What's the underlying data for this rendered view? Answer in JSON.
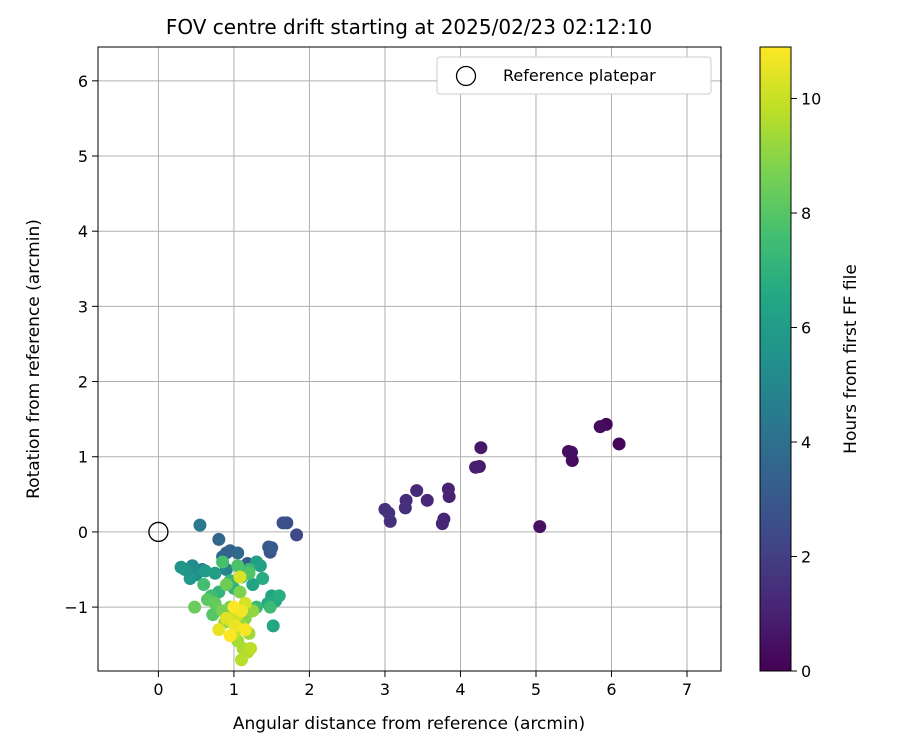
{
  "chart_data": {
    "type": "scatter",
    "title": "FOV centre drift starting at 2025/02/23 02:12:10",
    "xlabel": "Angular distance from reference (arcmin)",
    "ylabel": "Rotation from reference (arcmin)",
    "xlim": [
      -0.8,
      7.45
    ],
    "ylim": [
      -1.85,
      6.45
    ],
    "xticks": [
      0,
      1,
      2,
      3,
      4,
      5,
      6,
      7
    ],
    "yticks": [
      -1,
      0,
      1,
      2,
      3,
      4,
      5,
      6
    ],
    "xtick_labels": [
      "0",
      "1",
      "2",
      "3",
      "4",
      "5",
      "6",
      "7"
    ],
    "ytick_labels": [
      "−1",
      "0",
      "1",
      "2",
      "3",
      "4",
      "5",
      "6"
    ],
    "grid": true,
    "legend": {
      "position": "top-right",
      "label": "Reference platepar"
    },
    "reference_point": {
      "x": 0,
      "y": 0
    },
    "colorbar": {
      "label": "Hours from first FF file",
      "range": [
        0,
        10.9
      ],
      "ticks": [
        0,
        2,
        4,
        6,
        8,
        10
      ],
      "tick_labels": [
        "0",
        "2",
        "4",
        "6",
        "8",
        "10"
      ],
      "colormap": "viridis"
    },
    "points": [
      [
        6.1,
        1.17,
        0.1
      ],
      [
        5.93,
        1.43,
        0.2
      ],
      [
        5.85,
        1.4,
        0.3
      ],
      [
        5.48,
        0.95,
        0.35
      ],
      [
        5.47,
        1.06,
        0.4
      ],
      [
        5.43,
        1.07,
        0.45
      ],
      [
        5.05,
        0.07,
        0.5
      ],
      [
        4.27,
        1.12,
        0.7
      ],
      [
        4.25,
        0.87,
        0.8
      ],
      [
        4.2,
        0.86,
        0.9
      ],
      [
        3.85,
        0.47,
        1.0
      ],
      [
        3.84,
        0.57,
        1.05
      ],
      [
        3.78,
        0.17,
        1.1
      ],
      [
        3.76,
        0.11,
        1.15
      ],
      [
        3.56,
        0.42,
        1.2
      ],
      [
        3.42,
        0.55,
        1.3
      ],
      [
        3.28,
        0.42,
        1.4
      ],
      [
        3.27,
        0.32,
        1.45
      ],
      [
        3.07,
        0.14,
        1.5
      ],
      [
        3.05,
        0.25,
        1.55
      ],
      [
        3.0,
        0.3,
        1.6
      ],
      [
        1.83,
        -0.04,
        2.4
      ],
      [
        1.7,
        0.12,
        2.6
      ],
      [
        1.65,
        0.12,
        2.7
      ],
      [
        1.48,
        -0.27,
        2.9
      ],
      [
        1.46,
        -0.2,
        3.0
      ],
      [
        1.5,
        -0.21,
        3.1
      ],
      [
        1.18,
        -0.42,
        3.2
      ],
      [
        0.95,
        -0.25,
        3.3
      ],
      [
        0.9,
        -0.28,
        3.4
      ],
      [
        0.85,
        -0.33,
        3.5
      ],
      [
        0.8,
        -0.1,
        3.6
      ],
      [
        1.05,
        -0.28,
        3.7
      ],
      [
        0.55,
        0.09,
        4.4
      ],
      [
        0.58,
        -0.5,
        4.6
      ],
      [
        0.9,
        -0.5,
        4.8
      ],
      [
        1.15,
        -0.55,
        5.0
      ],
      [
        0.45,
        -0.45,
        5.2
      ],
      [
        0.5,
        -0.57,
        5.4
      ],
      [
        0.3,
        -0.47,
        5.6
      ],
      [
        0.35,
        -0.5,
        5.7
      ],
      [
        0.42,
        -0.62,
        5.8
      ],
      [
        0.62,
        -0.52,
        5.9
      ],
      [
        0.75,
        -0.55,
        6.0
      ],
      [
        1.3,
        -0.4,
        6.1
      ],
      [
        1.35,
        -0.45,
        6.2
      ],
      [
        1.25,
        -0.7,
        6.3
      ],
      [
        1.5,
        -0.85,
        6.4
      ],
      [
        1.55,
        -0.92,
        6.5
      ],
      [
        1.52,
        -1.25,
        6.5
      ],
      [
        1.45,
        -0.95,
        6.6
      ],
      [
        1.38,
        -0.62,
        6.7
      ],
      [
        1.6,
        -0.85,
        6.8
      ],
      [
        1.1,
        -0.6,
        6.9
      ],
      [
        1.0,
        -0.75,
        7.0
      ],
      [
        0.8,
        -0.8,
        7.1
      ],
      [
        0.95,
        -0.65,
        7.2
      ],
      [
        1.2,
        -0.5,
        7.3
      ],
      [
        1.3,
        -1.0,
        7.3
      ],
      [
        1.48,
        -1.0,
        7.4
      ],
      [
        0.7,
        -0.85,
        7.5
      ],
      [
        0.6,
        -0.7,
        7.6
      ],
      [
        0.85,
        -0.4,
        7.7
      ],
      [
        1.05,
        -0.45,
        7.8
      ],
      [
        1.2,
        -0.55,
        7.9
      ],
      [
        0.72,
        -1.1,
        8.0
      ],
      [
        0.65,
        -0.9,
        8.1
      ],
      [
        0.48,
        -1.0,
        8.4
      ],
      [
        0.75,
        -0.95,
        8.3
      ],
      [
        0.9,
        -0.7,
        8.5
      ],
      [
        0.95,
        -1.0,
        8.6
      ],
      [
        0.85,
        -1.05,
        8.7
      ],
      [
        1.08,
        -0.8,
        8.8
      ],
      [
        1.15,
        -1.15,
        8.9
      ],
      [
        0.88,
        -1.2,
        9.0
      ],
      [
        1.25,
        -1.05,
        9.1
      ],
      [
        1.1,
        -1.25,
        9.2
      ],
      [
        1.2,
        -1.35,
        9.3
      ],
      [
        1.05,
        -1.45,
        9.4
      ],
      [
        1.12,
        -1.55,
        9.5
      ],
      [
        1.18,
        -1.6,
        9.6
      ],
      [
        1.1,
        -1.7,
        9.7
      ],
      [
        1.22,
        -1.55,
        9.8
      ],
      [
        1.0,
        -1.35,
        9.9
      ],
      [
        0.98,
        -1.2,
        10.0
      ],
      [
        1.05,
        -1.1,
        10.1
      ],
      [
        1.15,
        -0.95,
        10.2
      ],
      [
        1.08,
        -0.6,
        10.3
      ],
      [
        0.9,
        -1.15,
        10.4
      ],
      [
        0.8,
        -1.3,
        10.5
      ],
      [
        1.02,
        -1.25,
        10.6
      ],
      [
        1.1,
        -1.05,
        10.7
      ],
      [
        1.15,
        -1.3,
        10.8
      ],
      [
        1.0,
        -1.0,
        10.85
      ],
      [
        0.95,
        -1.38,
        10.9
      ]
    ]
  }
}
